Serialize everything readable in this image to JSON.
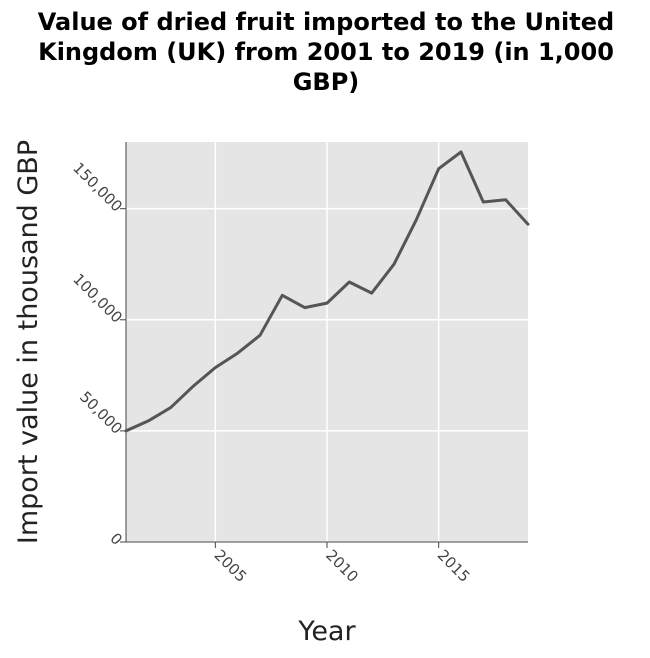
{
  "chart_data": {
    "type": "line",
    "title": "Value of dried fruit imported to the United Kingdom (UK) from 2001 to 2019 (in 1,000 GBP)",
    "title_lines": [
      "Value of dried fruit imported to the United",
      "Kingdom (UK) from 2001 to 2019 (in 1,000",
      "GBP)"
    ],
    "xlabel": "Year",
    "ylabel": "Import value in thousand GBP",
    "xlim": [
      2001,
      2019
    ],
    "ylim": [
      0,
      180000
    ],
    "xticks": [
      2005,
      2010,
      2015
    ],
    "xtick_labels": [
      "2005",
      "2010",
      "2015"
    ],
    "yticks": [
      0,
      50000,
      100000,
      150000
    ],
    "ytick_labels": [
      "0",
      "50,000",
      "100,000",
      "150,000"
    ],
    "grid": true,
    "legend": "none",
    "series": [
      {
        "x": [
          2001,
          2002,
          2003,
          2004,
          2005,
          2006,
          2007,
          2008,
          2009,
          2010,
          2011,
          2012,
          2013,
          2014,
          2015,
          2016,
          2017,
          2018,
          2019
        ],
        "values": [
          50000,
          54500,
          60500,
          70000,
          78500,
          85000,
          93000,
          111000,
          105500,
          107500,
          117000,
          112000,
          125000,
          145000,
          168000,
          175500,
          153000,
          154000,
          143000
        ],
        "color": "#555555"
      }
    ],
    "background_color": "#e5e5e5",
    "grid_color": "#ffffff"
  }
}
